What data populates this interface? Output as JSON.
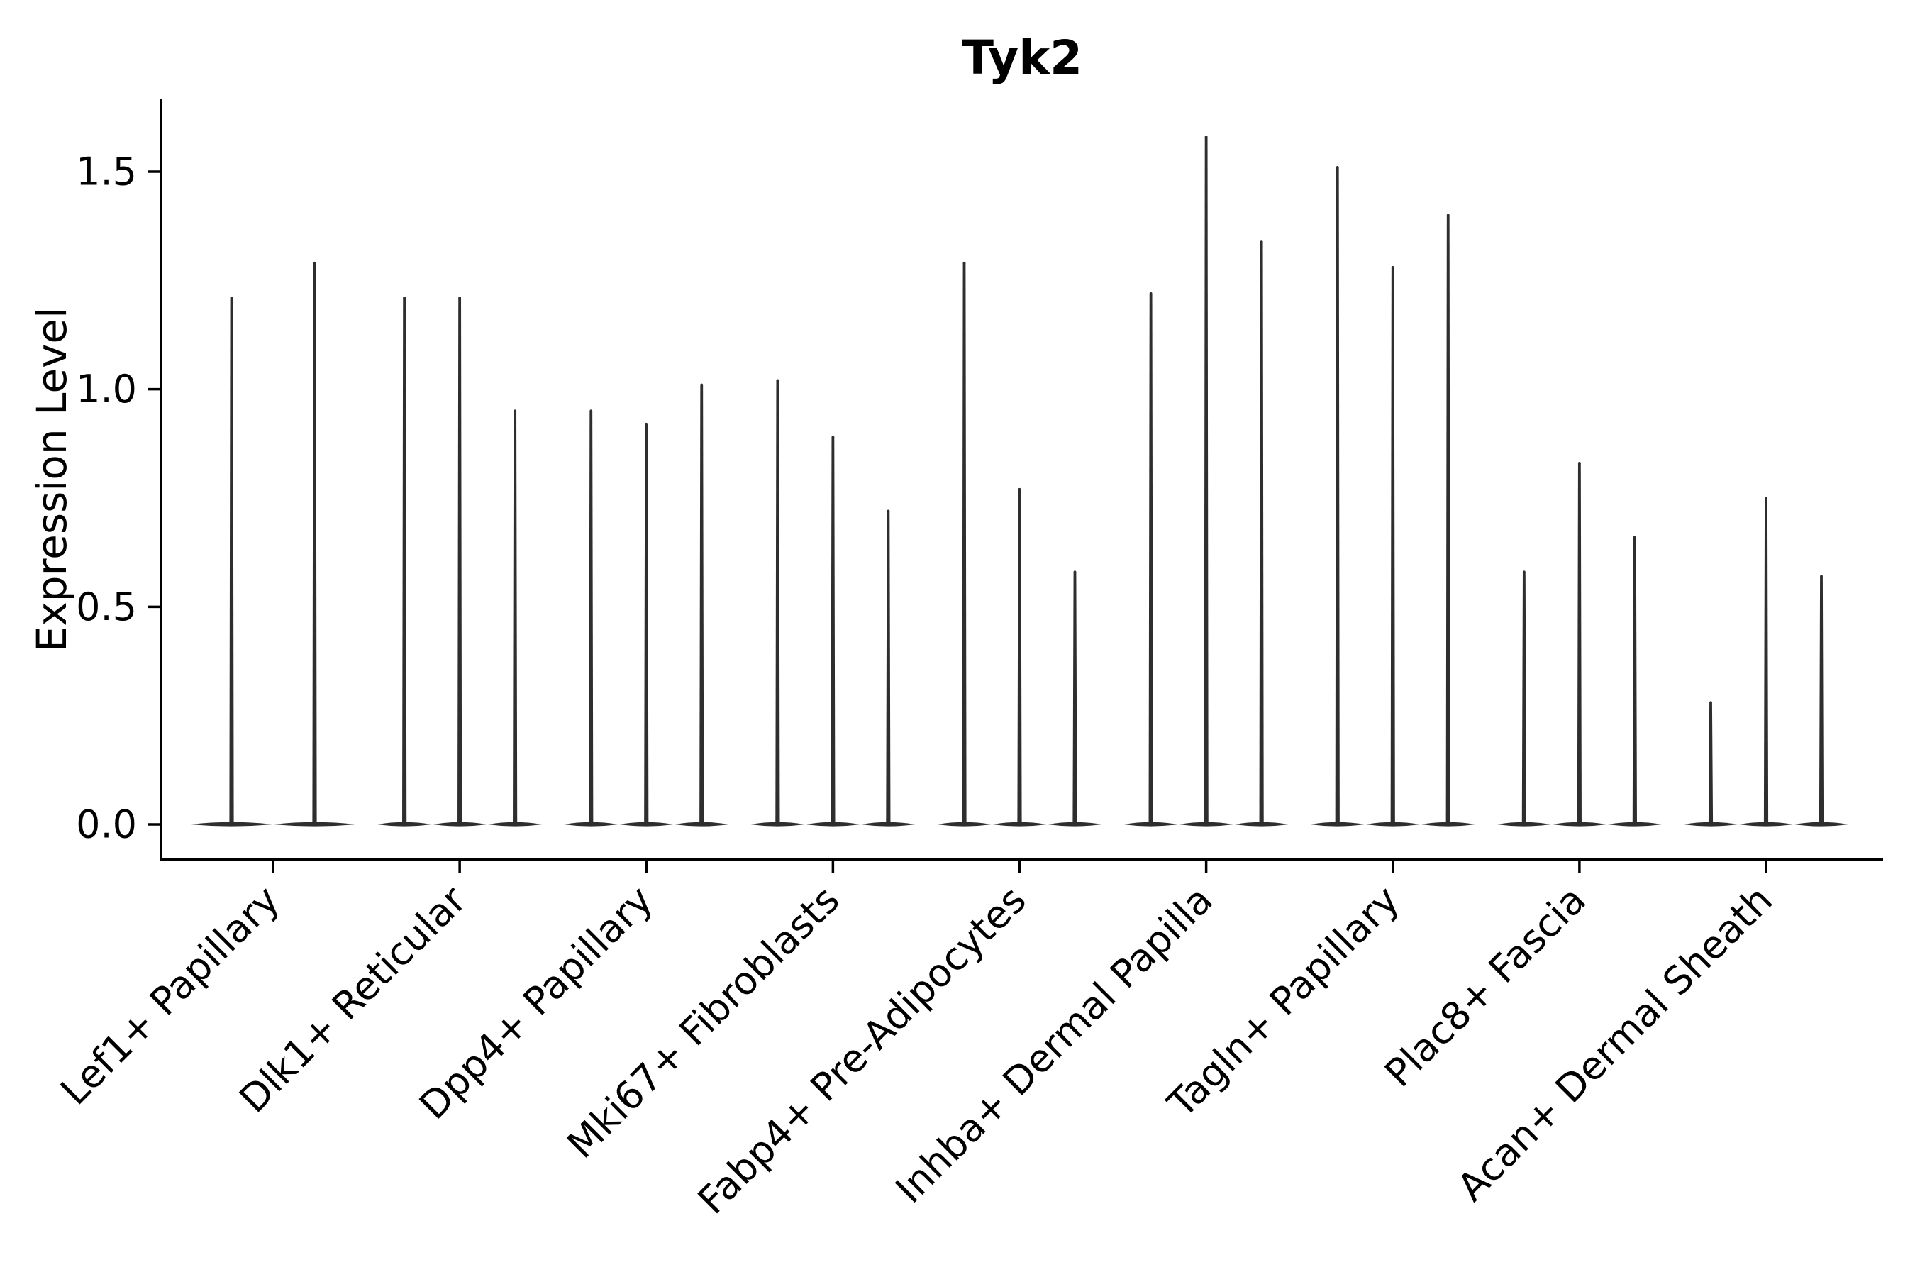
{
  "chart_data": {
    "type": "violin",
    "title": "Tyk2",
    "ylabel": "Expression Level",
    "xlabel": "",
    "grid": false,
    "legend": "none",
    "background": "#ffffff",
    "ink_color": "#000000",
    "violin_color": "#2e2e2e",
    "ylim": [
      -0.08,
      1.67
    ],
    "ytick_values": [
      0.0,
      0.5,
      1.0,
      1.5
    ],
    "ytick_labels": [
      "0.0",
      "0.5",
      "1.0",
      "1.5"
    ],
    "x_tick_rotation": 45,
    "categories": [
      "Lef1+ Papillary",
      "Dlk1+ Reticular",
      "Dpp4+ Papillary",
      "Mki67+ Fibroblasts",
      "Fabp4+ Pre-Adipocytes",
      "Inhba+ Dermal Papilla",
      "Tagln+ Papillary",
      "Plac8+ Fascia",
      "Acan+ Dermal Sheath"
    ],
    "groups": [
      {
        "category": "Lef1+ Papillary",
        "spike_values": [
          1.21,
          1.29
        ]
      },
      {
        "category": "Dlk1+ Reticular",
        "spike_values": [
          1.21,
          1.21,
          0.95
        ]
      },
      {
        "category": "Dpp4+ Papillary",
        "spike_values": [
          0.95,
          0.92,
          1.01
        ]
      },
      {
        "category": "Mki67+ Fibroblasts",
        "spike_values": [
          1.02,
          0.89,
          0.72
        ]
      },
      {
        "category": "Fabp4+ Pre-Adipocytes",
        "spike_values": [
          1.29,
          0.77,
          0.58
        ]
      },
      {
        "category": "Inhba+ Dermal Papilla",
        "spike_values": [
          1.22,
          1.58,
          1.34
        ]
      },
      {
        "category": "Tagln+ Papillary",
        "spike_values": [
          1.51,
          1.28,
          1.4
        ]
      },
      {
        "category": "Plac8+ Fascia",
        "spike_values": [
          0.58,
          0.83,
          0.66
        ]
      },
      {
        "category": "Acan+ Dermal Sheath",
        "spike_values": [
          0.28,
          0.75,
          0.57
        ]
      }
    ]
  }
}
